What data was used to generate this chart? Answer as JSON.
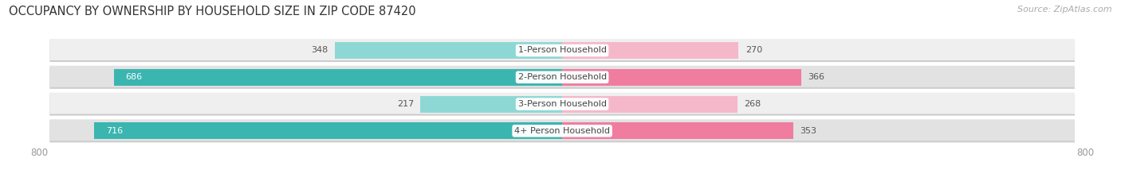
{
  "title": "OCCUPANCY BY OWNERSHIP BY HOUSEHOLD SIZE IN ZIP CODE 87420",
  "source": "Source: ZipAtlas.com",
  "categories": [
    "1-Person Household",
    "2-Person Household",
    "3-Person Household",
    "4+ Person Household"
  ],
  "owner_values": [
    348,
    686,
    217,
    716
  ],
  "renter_values": [
    270,
    366,
    268,
    353
  ],
  "owner_colors": [
    "#8dd8d5",
    "#3ab5b0",
    "#8dd8d5",
    "#3ab5b0"
  ],
  "renter_colors": [
    "#f5b8cb",
    "#f07ca0",
    "#f5b8cb",
    "#f07ca0"
  ],
  "xlim": 800,
  "background_color": "#ffffff",
  "row_bg_colors": [
    "#efefef",
    "#e2e2e2"
  ],
  "shadow_color": "#cccccc",
  "title_fontsize": 10.5,
  "source_fontsize": 8,
  "tick_fontsize": 8.5,
  "bar_label_fontsize": 8,
  "category_label_fontsize": 8
}
